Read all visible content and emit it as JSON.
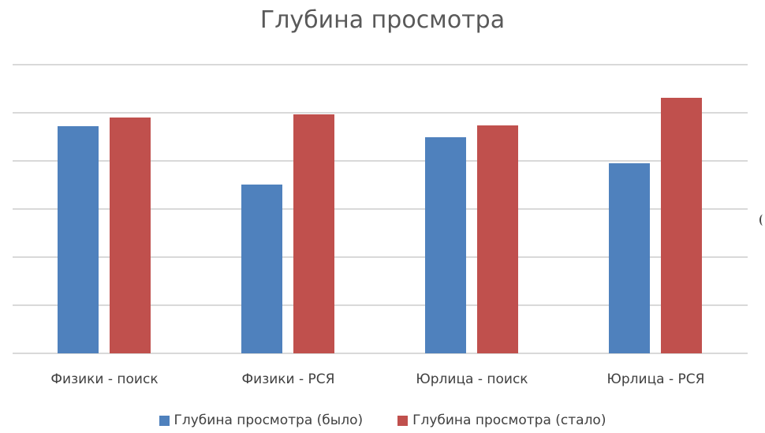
{
  "chart_data": {
    "type": "bar",
    "title": "Глубина просмотра",
    "xlabel": "",
    "ylabel": "",
    "categories": [
      "Физики - поиск",
      "Физики - РСЯ",
      "Юрлица - поиск",
      "Юрлица - РСЯ"
    ],
    "series": [
      {
        "name": "Глубина просмотра (было)",
        "color": "#4f81bd",
        "values": [
          4.72,
          3.51,
          4.49,
          3.95
        ]
      },
      {
        "name": "Глубина просмотра (стало)",
        "color": "#c0504d",
        "values": [
          4.9,
          4.97,
          4.74,
          5.31
        ]
      }
    ],
    "ylim": [
      0,
      6
    ],
    "gridlines": 7,
    "y_tick_labels_visible": false,
    "grid": true,
    "legend_position": "bottom"
  },
  "labels": {
    "title": "Глубина просмотра",
    "categories": [
      "Физики - поиск",
      "Физики - РСЯ",
      "Юрлица - поиск",
      "Юрлица - РСЯ"
    ],
    "legend": [
      "Глубина просмотра (было)",
      "Глубина просмотра (стало)"
    ]
  }
}
